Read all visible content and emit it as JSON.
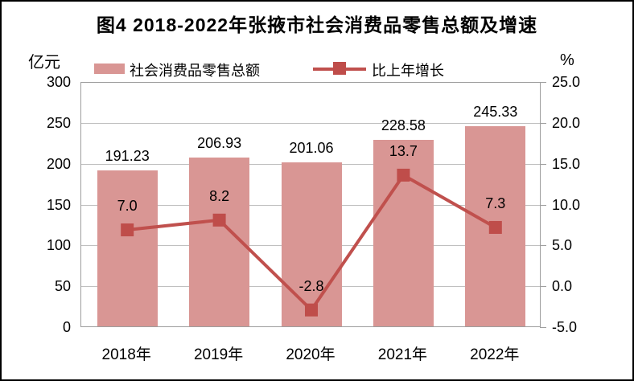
{
  "title": "图4  2018-2022年张掖市社会消费品零售总额及增速",
  "legend": {
    "bar_label": "社会消费品零售总额",
    "line_label": "比上年增长"
  },
  "left_axis": {
    "unit": "亿元",
    "min": 0,
    "max": 300,
    "step": 50,
    "tick_labels": [
      "300",
      "250",
      "200",
      "150",
      "100",
      "50",
      "0"
    ]
  },
  "right_axis": {
    "unit": "%",
    "min": -5,
    "max": 25,
    "step": 5,
    "tick_labels": [
      "25.0",
      "20.0",
      "15.0",
      "10.0",
      "5.0",
      "0.0",
      "-5.0"
    ]
  },
  "chart_data": {
    "type": "bar+line",
    "title": "图4  2018-2022年张掖市社会消费品零售总额及增速",
    "categories": [
      "2018年",
      "2019年",
      "2020年",
      "2021年",
      "2022年"
    ],
    "series": [
      {
        "name": "社会消费品零售总额",
        "type": "bar",
        "axis": "left",
        "unit": "亿元",
        "values": [
          191.23,
          206.93,
          201.06,
          228.58,
          245.33
        ],
        "labels": [
          "191.23",
          "206.93",
          "201.06",
          "228.58",
          "245.33"
        ]
      },
      {
        "name": "比上年增长",
        "type": "line",
        "axis": "right",
        "unit": "%",
        "values": [
          7.0,
          8.2,
          -2.8,
          13.7,
          7.3
        ],
        "labels": [
          "7.0",
          "8.2",
          "-2.8",
          "13.7",
          "7.3"
        ]
      }
    ],
    "left_ylim": [
      0,
      300
    ],
    "right_ylim": [
      -5,
      25
    ],
    "grid": true,
    "legend_position": "top"
  },
  "colors": {
    "bar": "#d99694",
    "line": "#c0504d",
    "marker": "#bf4d4a",
    "gridline": "#bfbfbf",
    "plot_border": "#9e9e9e",
    "figure_border": "#000000",
    "background": "#ffffff",
    "text": "#000000"
  }
}
